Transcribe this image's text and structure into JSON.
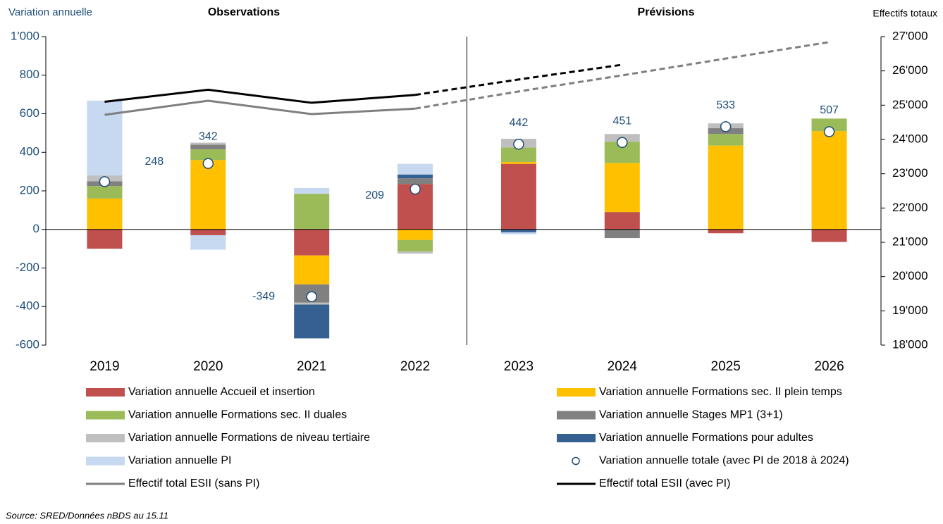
{
  "chart_data": {
    "type": "bar",
    "left_label": "Variation annuelle",
    "right_label": "Effectifs totaux",
    "headings": [
      "Observations",
      "Prévisions"
    ],
    "forecast_from": "2023",
    "source": "Source: SRED/Données nBDS au 15.11",
    "categories": [
      "2019",
      "2020",
      "2021",
      "2022",
      "2023",
      "2024",
      "2025",
      "2026"
    ],
    "ylim": [
      -600,
      1000
    ],
    "yticks": [
      -600,
      -400,
      -200,
      0,
      200,
      400,
      600,
      800,
      {
        "value": 1000,
        "label": "1'000"
      }
    ],
    "y2lim": [
      18000,
      27000
    ],
    "y2ticks": [
      {
        "value": 18000,
        "label": "18'000"
      },
      {
        "value": 19000,
        "label": "19'000"
      },
      {
        "value": 20000,
        "label": "20'000"
      },
      {
        "value": 21000,
        "label": "21'000"
      },
      {
        "value": 22000,
        "label": "22'000"
      },
      {
        "value": 23000,
        "label": "23'000"
      },
      {
        "value": 24000,
        "label": "24'000"
      },
      {
        "value": 25000,
        "label": "25'000"
      },
      {
        "value": 26000,
        "label": "26'000"
      },
      {
        "value": 27000,
        "label": "27'000"
      }
    ],
    "series": [
      {
        "name": "Variation annuelle Accueil et insertion",
        "color": "#c0504d",
        "values": [
          -100,
          -30,
          -135,
          235,
          340,
          90,
          -20,
          -65
        ]
      },
      {
        "name": "Variation annuelle Formations sec. II plein temps",
        "color": "#ffc000",
        "values": [
          160,
          360,
          -150,
          -55,
          10,
          255,
          435,
          510
        ]
      },
      {
        "name": "Variation annuelle Formations sec. II duales",
        "color": "#9bbb59",
        "values": [
          65,
          55,
          185,
          -60,
          75,
          110,
          60,
          65
        ]
      },
      {
        "name": "Variation annuelle Stages MP1 (3+1)",
        "color": "#808080",
        "values": [
          25,
          25,
          -95,
          30,
          0,
          -45,
          30,
          0
        ]
      },
      {
        "name": "Variation annuelle Formations de niveau tertiaire",
        "color": "#bfbfbf",
        "values": [
          30,
          10,
          -10,
          -10,
          45,
          40,
          25,
          0
        ]
      },
      {
        "name": "Variation annuelle Formations pour adultes",
        "color": "#376092",
        "values": [
          0,
          0,
          -175,
          20,
          -15,
          0,
          0,
          0
        ]
      },
      {
        "name": "Variation annuelle PI",
        "color": "#c6d9f1",
        "values": [
          388,
          -75,
          30,
          55,
          -10,
          0,
          0,
          0
        ]
      },
      {
        "name": "Variation annuelle totale (avec PI de 2018 à 2024)",
        "type": "scatter",
        "color": "#1f4e79",
        "values": [
          248,
          342,
          -349,
          209,
          442,
          451,
          533,
          507
        ]
      },
      {
        "name": "Effectif total ESII (sans PI)",
        "type": "line",
        "axis": "y2",
        "color": "#7f7f7f",
        "values": [
          24720,
          25130,
          24740,
          24900,
          25400,
          25870,
          26360,
          26840
        ]
      },
      {
        "name": "Effectif total ESII (avec PI)",
        "type": "line",
        "axis": "y2",
        "color": "#000000",
        "values": [
          25100,
          25450,
          25070,
          25300,
          25750,
          26180,
          null,
          null
        ]
      }
    ]
  }
}
